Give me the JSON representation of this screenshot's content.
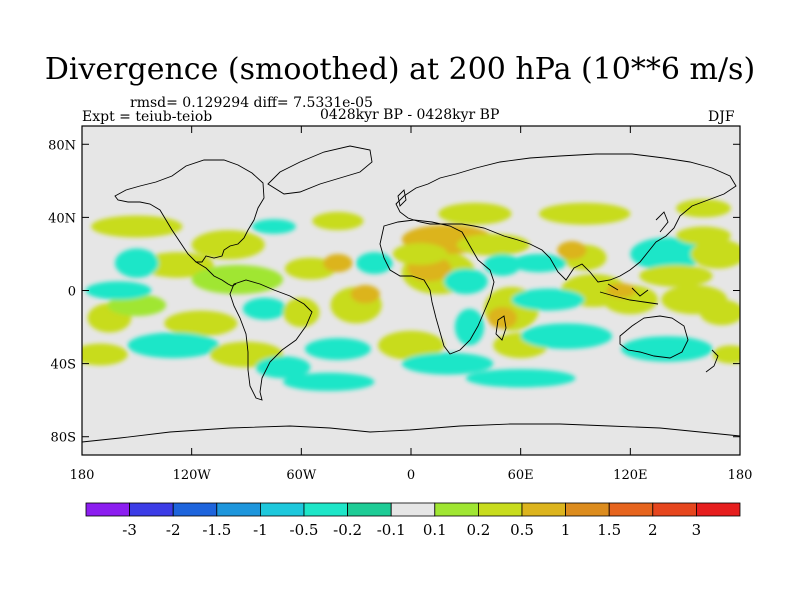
{
  "chart_data": {
    "type": "heatmap",
    "title": "Divergence (smoothed) at 200 hPa (10**6 m/s)",
    "stats_text": "rmsd= 0.129294 diff= 7.5331e-05",
    "left_label": "Expt = teiub-teiob",
    "center_label": "0428kyr BP - 0428kyr BP",
    "right_label": "DJF",
    "x_axis": {
      "range": [
        -180,
        180
      ],
      "ticks": [
        {
          "value": -180,
          "label": "180"
        },
        {
          "value": -120,
          "label": "120W"
        },
        {
          "value": -60,
          "label": "60W"
        },
        {
          "value": 0,
          "label": "0"
        },
        {
          "value": 60,
          "label": "60E"
        },
        {
          "value": 120,
          "label": "120E"
        },
        {
          "value": 180,
          "label": "180"
        }
      ]
    },
    "y_axis": {
      "range": [
        -90,
        90
      ],
      "ticks": [
        {
          "value": 80,
          "label": "80N"
        },
        {
          "value": 40,
          "label": "40N"
        },
        {
          "value": 0,
          "label": "0"
        },
        {
          "value": -40,
          "label": "40S"
        },
        {
          "value": -80,
          "label": "80S"
        }
      ]
    },
    "colorbar": {
      "colors": [
        "#8c1ef0",
        "#3c3ce6",
        "#1e64dc",
        "#1e96dc",
        "#1ec8dc",
        "#1ee6c8",
        "#1ecc96",
        "#e6e6e6",
        "#a0e632",
        "#c8dc1e",
        "#dcb41e",
        "#dc8c1e",
        "#e6641e",
        "#e6461e",
        "#e61e1e"
      ],
      "levels": [
        "-3",
        "-2",
        "-1.5",
        "-1",
        "-0.5",
        "-0.2",
        "-0.1",
        "0.1",
        "0.2",
        "0.5",
        "1",
        "1.5",
        "2",
        "3"
      ]
    },
    "fields": [
      {
        "lon": 95,
        "lat": 18,
        "rx": 12,
        "ry": 7,
        "level": 9
      },
      {
        "lon": 88,
        "lat": 22,
        "rx": 8,
        "ry": 5,
        "level": 10
      },
      {
        "lon": -128,
        "lat": 14,
        "rx": 20,
        "ry": 7,
        "level": 9
      },
      {
        "lon": -95,
        "lat": 6,
        "rx": 25,
        "ry": 8,
        "level": 8
      },
      {
        "lon": -55,
        "lat": 12,
        "rx": 14,
        "ry": 6,
        "level": 9
      },
      {
        "lon": -40,
        "lat": 15,
        "rx": 8,
        "ry": 5,
        "level": 10
      },
      {
        "lon": -165,
        "lat": -15,
        "rx": 12,
        "ry": 8,
        "level": 9
      },
      {
        "lon": -150,
        "lat": -8,
        "rx": 16,
        "ry": 6,
        "level": 8
      },
      {
        "lon": -115,
        "lat": -18,
        "rx": 20,
        "ry": 7,
        "level": 9
      },
      {
        "lon": -80,
        "lat": -10,
        "rx": 12,
        "ry": 6,
        "level": 5
      },
      {
        "lon": -60,
        "lat": -12,
        "rx": 10,
        "ry": 8,
        "level": 9
      },
      {
        "lon": -30,
        "lat": -8,
        "rx": 14,
        "ry": 10,
        "level": 9
      },
      {
        "lon": -25,
        "lat": -2,
        "rx": 8,
        "ry": 5,
        "level": 10
      },
      {
        "lon": 15,
        "lat": 10,
        "rx": 20,
        "ry": 12,
        "level": 9
      },
      {
        "lon": 10,
        "lat": 12,
        "rx": 12,
        "ry": 7,
        "level": 10
      },
      {
        "lon": 30,
        "lat": 5,
        "rx": 12,
        "ry": 7,
        "level": 5
      },
      {
        "lon": 55,
        "lat": -10,
        "rx": 15,
        "ry": 12,
        "level": 9
      },
      {
        "lon": 50,
        "lat": -15,
        "rx": 8,
        "ry": 6,
        "level": 10
      },
      {
        "lon": 32,
        "lat": -20,
        "rx": 8,
        "ry": 10,
        "level": 5
      },
      {
        "lon": 100,
        "lat": 0,
        "rx": 18,
        "ry": 9,
        "level": 9
      },
      {
        "lon": 120,
        "lat": -5,
        "rx": 15,
        "ry": 8,
        "level": 9
      },
      {
        "lon": 115,
        "lat": 0,
        "rx": 8,
        "ry": 4,
        "level": 10
      },
      {
        "lon": 140,
        "lat": 20,
        "rx": 20,
        "ry": 9,
        "level": 5
      },
      {
        "lon": 145,
        "lat": 8,
        "rx": 20,
        "ry": 6,
        "level": 9
      },
      {
        "lon": 155,
        "lat": -5,
        "rx": 18,
        "ry": 8,
        "level": 9
      },
      {
        "lon": 170,
        "lat": -12,
        "rx": 12,
        "ry": 7,
        "level": 9
      },
      {
        "lon": 168,
        "lat": 20,
        "rx": 15,
        "ry": 8,
        "level": 9
      },
      {
        "lon": -150,
        "lat": 15,
        "rx": 12,
        "ry": 8,
        "level": 5
      },
      {
        "lon": -100,
        "lat": 25,
        "rx": 20,
        "ry": 8,
        "level": 9
      },
      {
        "lon": -40,
        "lat": 38,
        "rx": 14,
        "ry": 5,
        "level": 9
      },
      {
        "lon": 35,
        "lat": 42,
        "rx": 20,
        "ry": 6,
        "level": 9
      },
      {
        "lon": 95,
        "lat": 42,
        "rx": 25,
        "ry": 6,
        "level": 9
      },
      {
        "lon": -150,
        "lat": 35,
        "rx": 25,
        "ry": 6,
        "level": 9
      },
      {
        "lon": 160,
        "lat": 45,
        "rx": 15,
        "ry": 5,
        "level": 9
      },
      {
        "lon": -170,
        "lat": -35,
        "rx": 15,
        "ry": 6,
        "level": 9
      },
      {
        "lon": -130,
        "lat": -30,
        "rx": 25,
        "ry": 7,
        "level": 5
      },
      {
        "lon": -90,
        "lat": -35,
        "rx": 20,
        "ry": 7,
        "level": 9
      },
      {
        "lon": -70,
        "lat": -42,
        "rx": 15,
        "ry": 6,
        "level": 5
      },
      {
        "lon": -40,
        "lat": -32,
        "rx": 18,
        "ry": 6,
        "level": 5
      },
      {
        "lon": 0,
        "lat": -30,
        "rx": 18,
        "ry": 8,
        "level": 9
      },
      {
        "lon": 20,
        "lat": -40,
        "rx": 25,
        "ry": 6,
        "level": 5
      },
      {
        "lon": 60,
        "lat": -30,
        "rx": 15,
        "ry": 7,
        "level": 9
      },
      {
        "lon": 85,
        "lat": -25,
        "rx": 25,
        "ry": 7,
        "level": 5
      },
      {
        "lon": 140,
        "lat": -32,
        "rx": 25,
        "ry": 7,
        "level": 5
      },
      {
        "lon": 175,
        "lat": -35,
        "rx": 10,
        "ry": 5,
        "level": 9
      },
      {
        "lon": 160,
        "lat": 30,
        "rx": 15,
        "ry": 5,
        "level": 9
      },
      {
        "lon": -75,
        "lat": 35,
        "rx": 12,
        "ry": 4,
        "level": 5
      },
      {
        "lon": 20,
        "lat": 28,
        "rx": 25,
        "ry": 8,
        "level": 10
      },
      {
        "lon": 5,
        "lat": 20,
        "rx": 15,
        "ry": 6,
        "level": 9
      },
      {
        "lon": 45,
        "lat": 25,
        "rx": 20,
        "ry": 6,
        "level": 9
      },
      {
        "lon": 50,
        "lat": 14,
        "rx": 10,
        "ry": 6,
        "level": 5
      },
      {
        "lon": 70,
        "lat": 15,
        "rx": 15,
        "ry": 5,
        "level": 5
      },
      {
        "lon": 75,
        "lat": -5,
        "rx": 20,
        "ry": 6,
        "level": 5
      },
      {
        "lon": -20,
        "lat": 15,
        "rx": 10,
        "ry": 6,
        "level": 5
      },
      {
        "lon": -160,
        "lat": 0,
        "rx": 18,
        "ry": 5,
        "level": 5
      },
      {
        "lon": -45,
        "lat": -50,
        "rx": 25,
        "ry": 5,
        "level": 5
      },
      {
        "lon": 60,
        "lat": -48,
        "rx": 30,
        "ry": 5,
        "level": 5
      }
    ]
  }
}
